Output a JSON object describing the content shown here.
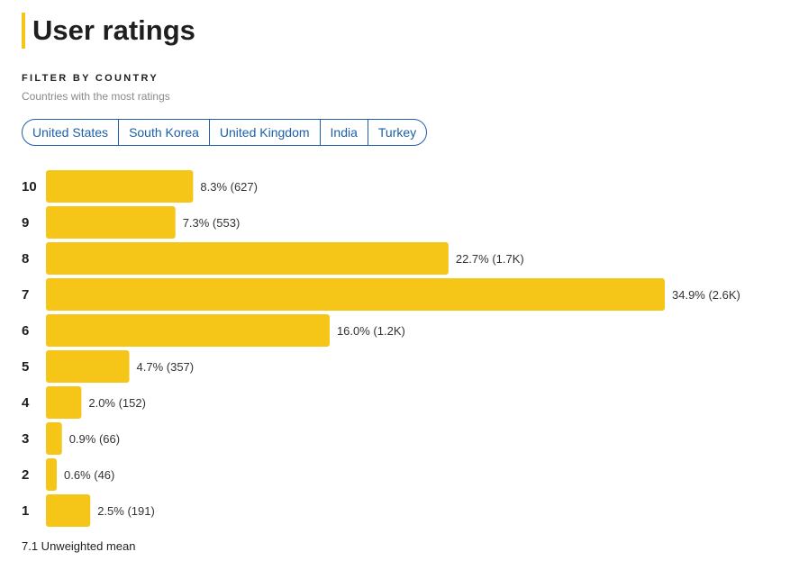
{
  "header": {
    "title": "User ratings"
  },
  "filter": {
    "label": "FILTER BY COUNTRY",
    "subtitle": "Countries with the most ratings",
    "countries": [
      "United States",
      "South Korea",
      "United Kingdom",
      "India",
      "Turkey"
    ]
  },
  "chart_data": {
    "type": "bar",
    "orientation": "horizontal",
    "bar_color": "#f5c518",
    "categories": [
      "10",
      "9",
      "8",
      "7",
      "6",
      "5",
      "4",
      "3",
      "2",
      "1"
    ],
    "values": [
      8.3,
      7.3,
      22.7,
      34.9,
      16.0,
      4.7,
      2.0,
      0.9,
      0.6,
      2.5
    ],
    "labels": [
      "8.3% (627)",
      "7.3% (553)",
      "22.7% (1.7K)",
      "34.9% (2.6K)",
      "16.0% (1.2K)",
      "4.7% (357)",
      "2.0% (152)",
      "0.9% (66)",
      "0.6% (46)",
      "2.5% (191)"
    ],
    "unit": "%",
    "grid": false
  },
  "summary": {
    "mean": "7.1 Unweighted mean"
  }
}
